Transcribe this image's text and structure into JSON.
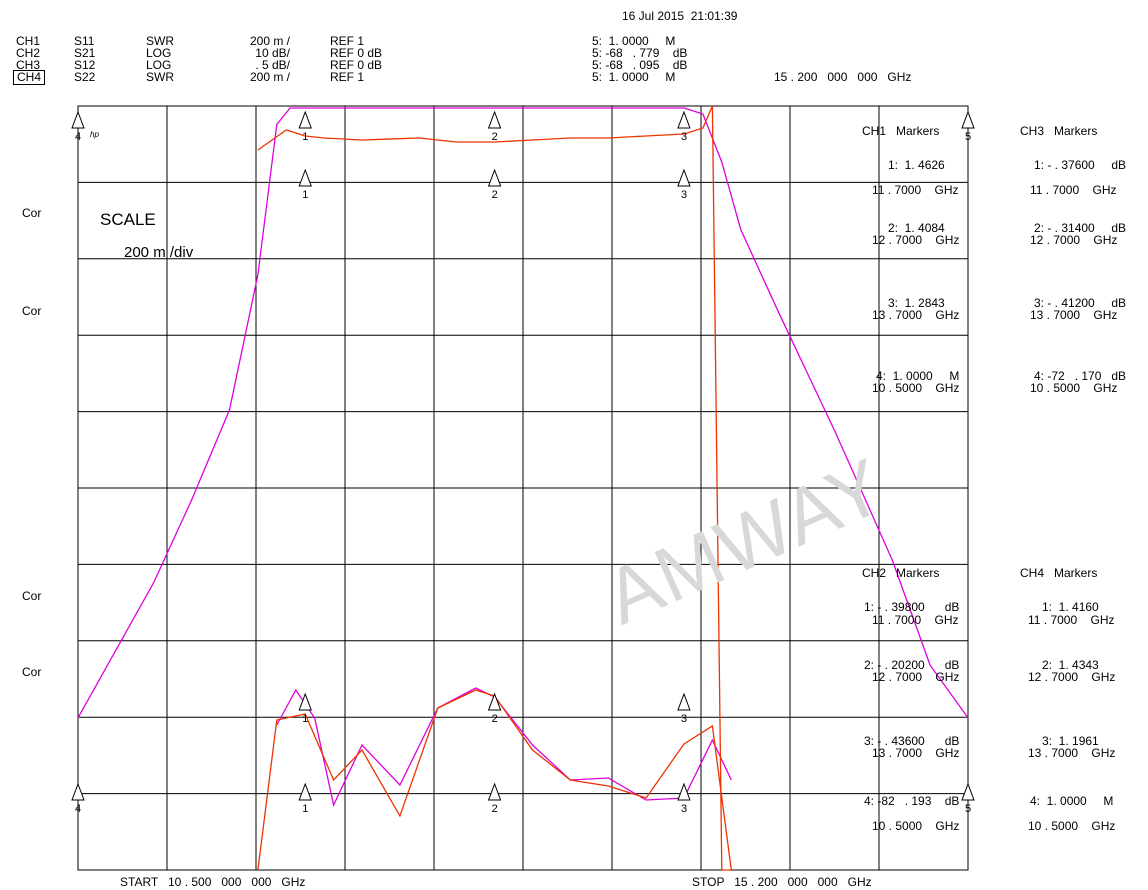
{
  "header": {
    "datetime": "16 Jul 2015  21:01:39",
    "channels": [
      {
        "ch": "CH1",
        "param": "S11",
        "format": "SWR",
        "scale": "200 m /",
        "ref": "REF 1",
        "marker": "5:  1. 0000     M"
      },
      {
        "ch": "CH2",
        "param": "S21",
        "format": "LOG",
        "scale": "10 dB/",
        "ref": "REF 0 dB",
        "marker": "5: -68   . 779    dB"
      },
      {
        "ch": "CH3",
        "param": "S12",
        "format": "LOG",
        "scale": ". 5 dB/",
        "ref": "REF 0 dB",
        "marker": "5: -68   . 095    dB"
      },
      {
        "ch": "CH4",
        "param": "S22",
        "format": "SWR",
        "scale": "200 m /",
        "ref": "REF 1",
        "marker": "5:  1. 0000     M"
      }
    ],
    "marker_freq": "15 . 200   000   000   GHz"
  },
  "left_labels": [
    "Cor",
    "Cor",
    "Cor",
    "Cor"
  ],
  "scale_title": "SCALE",
  "scale_value": "200 m /div",
  "hp_label": "hp",
  "start_label": "START   10 . 500   000   000   GHz",
  "stop_label": "STOP   15 . 200   000   000   GHz",
  "watermark": "AMWAY",
  "marker_tables": {
    "ch1": {
      "title": "CH1   Markers",
      "rows": [
        {
          "a": "1:  1. 4626",
          "b": "11 . 7000    GHz"
        },
        {
          "a": "2:  1. 4084",
          "b": "12 . 7000    GHz"
        },
        {
          "a": "3:  1. 2843",
          "b": "13 . 7000    GHz"
        },
        {
          "a": "4:  1. 0000     M",
          "b": "10 . 5000    GHz"
        }
      ]
    },
    "ch2": {
      "title": "CH2   Markers",
      "rows": [
        {
          "a": "1: - . 39800      dB",
          "b": "11 . 7000    GHz"
        },
        {
          "a": "2: - . 20200      dB",
          "b": "12 . 7000    GHz"
        },
        {
          "a": "3: - . 43600      dB",
          "b": "13 . 7000    GHz"
        },
        {
          "a": "4: -82   . 193    dB",
          "b": "10 . 5000    GHz"
        }
      ]
    },
    "ch3": {
      "title": "CH3   Markers",
      "rows": [
        {
          "a": "1: - . 37600     dB",
          "b": "11 . 7000    GHz"
        },
        {
          "a": "2: - . 31400     dB",
          "b": "12 . 7000    GHz"
        },
        {
          "a": "3: - . 41200     dB",
          "b": "13 . 7000    GHz"
        },
        {
          "a": "4: -72   . 170   dB",
          "b": "10 . 5000    GHz"
        }
      ]
    },
    "ch4": {
      "title": "CH4   Markers",
      "rows": [
        {
          "a": "1:  1. 4160",
          "b": "11 . 7000    GHz"
        },
        {
          "a": "2:  1. 4343",
          "b": "12 . 7000    GHz"
        },
        {
          "a": "3:  1. 1961",
          "b": "13 . 7000    GHz"
        },
        {
          "a": "4:  1. 0000     M",
          "b": "10 . 5000    GHz"
        }
      ]
    }
  },
  "marker_tags": [
    "1",
    "2",
    "3",
    "4",
    "5"
  ],
  "colors": {
    "ch1_s11": "#dd00dd",
    "ch2_s21": "#ee3300",
    "grid": "#000000",
    "watermark": "#d8d8d8"
  },
  "chart_data": {
    "type": "line",
    "title": "",
    "xlabel": "",
    "xlim": [
      10.5,
      15.2
    ],
    "grid": true,
    "series": [
      {
        "name": "S11",
        "units": "SWR",
        "color": "#dd00dd",
        "x": [
          10.5,
          10.7,
          10.9,
          11.1,
          11.3,
          11.45,
          11.55,
          11.62,
          11.7,
          11.9,
          12.2,
          12.5,
          12.7,
          13.0,
          13.3,
          13.6,
          13.7,
          13.8,
          13.9,
          14.0,
          14.2,
          14.5,
          14.8,
          15.0,
          15.2
        ],
        "y": [
          1.0,
          1.45,
          1.9,
          2.45,
          3.05,
          3.95,
          4.95,
          5.06,
          5.06,
          5.06,
          5.06,
          5.06,
          5.06,
          5.06,
          5.06,
          5.06,
          5.06,
          5.02,
          4.7,
          4.25,
          3.7,
          2.9,
          2.05,
          1.35,
          1.0
        ]
      },
      {
        "name": "S11 (lower trace)",
        "units": "SWR",
        "color": "#dd00dd",
        "x": [
          11.55,
          11.65,
          11.75,
          11.85,
          12.0,
          12.2,
          12.4,
          12.6,
          12.7,
          12.9,
          13.1,
          13.3,
          13.5,
          13.7,
          13.85,
          13.95
        ],
        "y": [
          1.15,
          1.5,
          1.22,
          0.35,
          0.95,
          0.55,
          1.32,
          1.52,
          1.43,
          0.95,
          0.6,
          0.62,
          0.4,
          0.42,
          1.0,
          0.6
        ]
      },
      {
        "name": "S21",
        "units": "dB",
        "color": "#ee3300",
        "x": [
          11.45,
          11.6,
          11.7,
          11.8,
          12.0,
          12.3,
          12.5,
          12.7,
          12.9,
          13.1,
          13.3,
          13.5,
          13.7,
          13.8,
          13.85,
          13.9,
          13.95
        ],
        "y": [
          0.0,
          -0.5,
          -0.35,
          -0.3,
          -0.25,
          -0.3,
          -0.2,
          -0.2,
          -0.25,
          -0.3,
          -0.3,
          -0.35,
          -0.4,
          -0.55,
          -1.5,
          -8.0,
          -68.0
        ]
      },
      {
        "name": "S12",
        "units": "dB",
        "color": "#ee3300",
        "x": [
          11.45,
          11.55,
          11.7,
          11.85,
          12.0,
          12.2,
          12.4,
          12.6,
          12.7,
          12.9,
          13.1,
          13.3,
          13.5,
          13.7,
          13.85,
          13.95
        ],
        "y": [
          -8.0,
          -0.4,
          -0.38,
          -0.6,
          -0.5,
          -0.72,
          -0.36,
          -0.3,
          -0.32,
          -0.5,
          -0.6,
          -0.62,
          -0.66,
          -0.48,
          -0.42,
          -8.0
        ]
      }
    ],
    "markers": [
      {
        "label": "1",
        "x": 11.7
      },
      {
        "label": "2",
        "x": 12.7
      },
      {
        "label": "3",
        "x": 13.7
      },
      {
        "label": "4",
        "x": 10.5
      },
      {
        "label": "5",
        "x": 15.2
      }
    ]
  }
}
